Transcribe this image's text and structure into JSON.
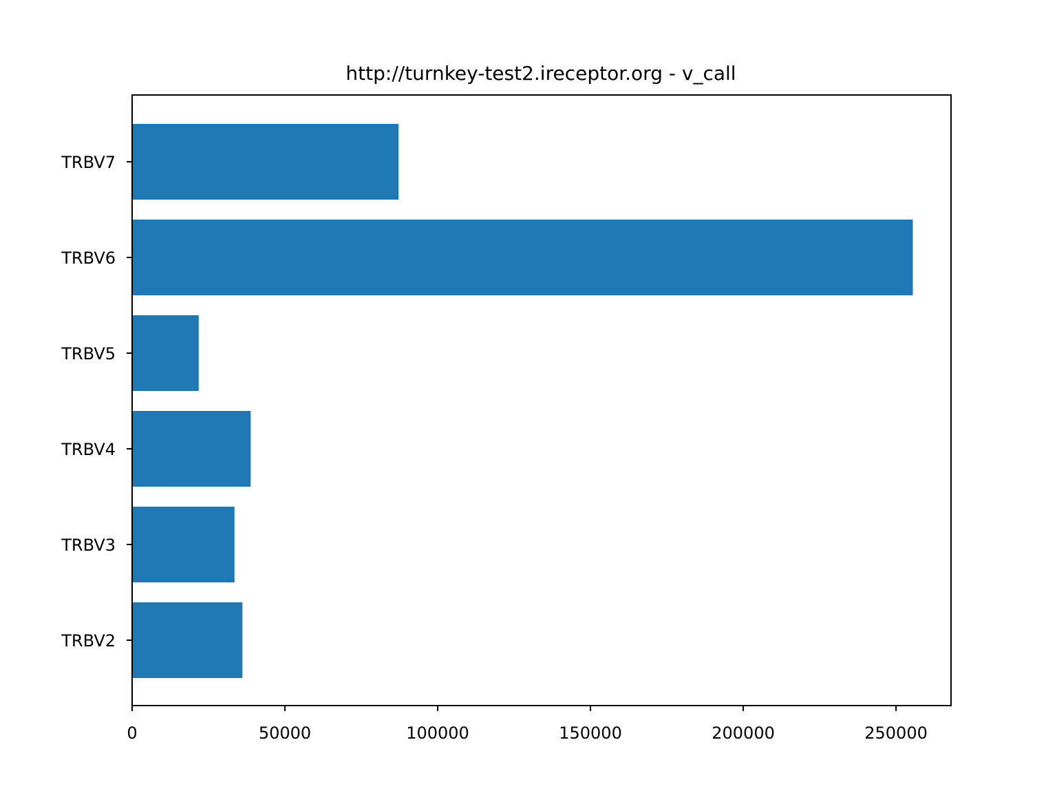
{
  "chart_data": {
    "type": "bar",
    "orientation": "horizontal",
    "title": "http://turnkey-test2.ireceptor.org - v_call",
    "xlabel": "",
    "ylabel": "",
    "categories": [
      "TRBV2",
      "TRBV3",
      "TRBV4",
      "TRBV5",
      "TRBV6",
      "TRBV7"
    ],
    "values": [
      36100,
      33500,
      38800,
      21800,
      255500,
      87200
    ],
    "xlim": [
      0,
      268000
    ],
    "xticks": [
      0,
      50000,
      100000,
      150000,
      200000,
      250000
    ],
    "xtick_labels": [
      "0",
      "50000",
      "100000",
      "150000",
      "200000",
      "250000"
    ],
    "grid": false,
    "legend": "none",
    "bar_color": "#1f77b4"
  }
}
